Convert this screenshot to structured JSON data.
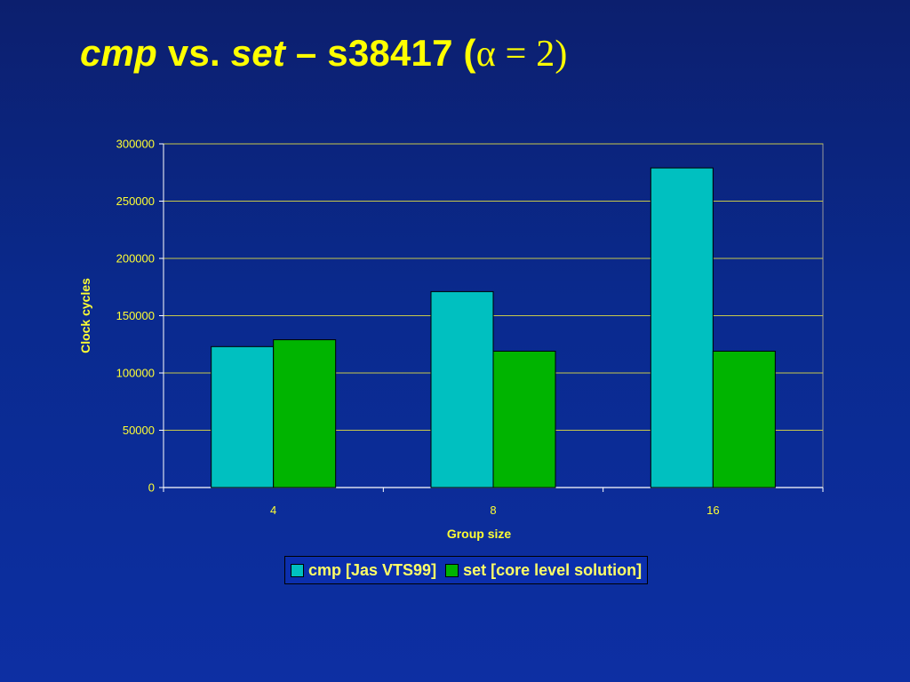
{
  "slide": {
    "title_parts": {
      "part1": "cmp",
      "part2": " vs. ",
      "part3": "set",
      "part4": " – s38417 (",
      "part5": "α = 2)"
    }
  },
  "chart_data": {
    "type": "bar",
    "title": "",
    "xlabel": "Group size",
    "ylabel": "Clock cycles",
    "categories": [
      "4",
      "8",
      "16"
    ],
    "series": [
      {
        "name": "cmp [Jas VTS99]",
        "values": [
          123000,
          171000,
          279000
        ],
        "color": "#00c0c0"
      },
      {
        "name": "set [core level solution]",
        "values": [
          129000,
          119000,
          119000
        ],
        "color": "#00b400"
      }
    ],
    "ylim": [
      0,
      300000
    ],
    "yticks": [
      "0",
      "50000",
      "100000",
      "150000",
      "200000",
      "250000",
      "300000"
    ],
    "grid": true,
    "legend_position": "bottom"
  },
  "colors": {
    "title": "#ffff00",
    "axis_text": "#ffff33",
    "gridline": "#c8c84a"
  }
}
